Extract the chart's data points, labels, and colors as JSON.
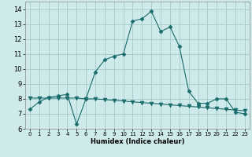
{
  "xlabel": "Humidex (Indice chaleur)",
  "x_ticks": [
    0,
    1,
    2,
    3,
    4,
    5,
    6,
    7,
    8,
    9,
    10,
    11,
    12,
    13,
    14,
    15,
    16,
    17,
    18,
    19,
    20,
    21,
    22,
    23
  ],
  "ylim": [
    6,
    14.5
  ],
  "xlim": [
    -0.5,
    23.5
  ],
  "y_ticks": [
    6,
    7,
    8,
    9,
    10,
    11,
    12,
    13,
    14
  ],
  "bg_color": "#ceeaea",
  "grid_color": "#aacece",
  "line_color": "#1a6b6b",
  "line1_x": [
    0,
    1,
    2,
    3,
    4,
    5,
    6,
    7,
    8,
    9,
    10,
    11,
    12,
    13,
    14,
    15,
    16,
    17,
    18,
    19,
    20,
    21,
    22,
    23
  ],
  "line1_y": [
    7.3,
    7.8,
    8.1,
    8.2,
    8.3,
    6.3,
    8.0,
    9.8,
    10.6,
    10.85,
    11.0,
    13.2,
    13.35,
    13.85,
    12.5,
    12.8,
    11.5,
    8.5,
    7.7,
    7.7,
    8.0,
    8.0,
    7.1,
    7.0
  ],
  "line2_x": [
    0,
    1,
    2,
    3,
    4,
    5,
    6,
    7,
    8,
    9,
    10,
    11,
    12,
    13,
    14,
    15,
    16,
    17,
    18,
    19,
    20,
    21,
    22,
    23
  ],
  "line2_y": [
    8.05,
    8.05,
    8.05,
    8.05,
    8.05,
    8.05,
    8.0,
    8.0,
    7.95,
    7.9,
    7.85,
    7.8,
    7.75,
    7.7,
    7.65,
    7.6,
    7.55,
    7.5,
    7.45,
    7.4,
    7.35,
    7.3,
    7.25,
    7.2
  ],
  "marker1": "D",
  "marker2": "v",
  "markersize1": 2.5,
  "markersize2": 3.5
}
